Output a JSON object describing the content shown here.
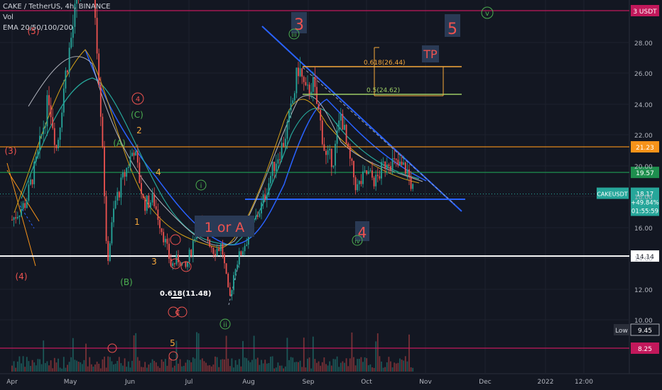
{
  "legend": {
    "symbol": "CAKE / TetherUS, 4h, BINANCE",
    "vol": "Vol",
    "ema": "EMA 20/50/100/200"
  },
  "chart_data": {
    "type": "candlestick",
    "title": "CAKE / TetherUS, 4h, BINANCE",
    "price_axis": {
      "unit": "USDT",
      "ticks": [
        "28.00",
        "26.00",
        "24.00",
        "22.00",
        "20.00",
        "18.00",
        "16.00",
        "14.00",
        "12.00",
        "10.00"
      ],
      "ylim": [
        7.5,
        31
      ]
    },
    "time_axis": {
      "ticks": [
        "Apr",
        "May",
        "Jun",
        "Jul",
        "Aug",
        "Sep",
        "Oct",
        "Nov",
        "Dec",
        "2022",
        "12:00"
      ]
    },
    "price_badges": [
      {
        "label": "3",
        "unit": "USDT",
        "value": 30.0,
        "color": "#c2185b"
      },
      {
        "label": "21.23",
        "value": 21.23,
        "color": "#f7931a"
      },
      {
        "label": "19.57",
        "value": 19.57,
        "color": "#1e8f4e"
      },
      {
        "label": "14.14",
        "value": 14.14,
        "color": "#ffffff"
      },
      {
        "label": "8.25",
        "value": 8.25,
        "color": "#c2185b"
      }
    ],
    "current": {
      "symbol": "CAKEUSDT",
      "price": "18.17",
      "change": "+49.84%",
      "countdown": "01:55:59"
    },
    "low": {
      "label": "Low",
      "value": "9.45"
    },
    "fib_levels": [
      {
        "label": "0.618(26.44)",
        "value": 26.44
      },
      {
        "label": "0.5(24.62)",
        "value": 24.62
      },
      {
        "label": "0.618(11.48)",
        "value": 11.48
      }
    ],
    "wave_labels": [
      "3",
      "5",
      "TP",
      "1 or A",
      "4",
      "(3)",
      "(4)",
      "(5)",
      "(C)",
      "(A)",
      "(B)",
      "2",
      "4",
      "1",
      "3",
      "5",
      "i",
      "ii",
      "iii",
      "iv",
      "v",
      "4",
      "C"
    ],
    "price_path": [
      [
        "Apr 1",
        16.5
      ],
      [
        "Apr 8",
        17.6
      ],
      [
        "Apr 14",
        20.5
      ],
      [
        "Apr 20",
        24.5
      ],
      [
        "Apr 24",
        21.0
      ],
      [
        "Apr 28",
        25.5
      ],
      [
        "May 3",
        29.5
      ],
      [
        "May 8",
        34.0
      ],
      [
        "May 14",
        30.0
      ],
      [
        "May 18",
        21.0
      ],
      [
        "May 20",
        13.5
      ],
      [
        "May 24",
        17.5
      ],
      [
        "May 28",
        19.0
      ],
      [
        "Jun 3",
        21.2
      ],
      [
        "Jun 8",
        17.5
      ],
      [
        "Jun 13",
        17.8
      ],
      [
        "Jun 18",
        15.5
      ],
      [
        "Jun 22",
        13.5
      ],
      [
        "Jun 26",
        14.0
      ],
      [
        "Jun 29",
        13.2
      ],
      [
        "Jul 2",
        14.5
      ],
      [
        "Jul 6",
        16.5
      ],
      [
        "Jul 10",
        15.5
      ],
      [
        "Jul 14",
        14.5
      ],
      [
        "Jul 18",
        14.8
      ],
      [
        "Jul 22",
        11.2
      ],
      [
        "Jul 25",
        13.5
      ],
      [
        "Aug 1",
        15.5
      ],
      [
        "Aug 8",
        17.5
      ],
      [
        "Aug 14",
        20.0
      ],
      [
        "Aug 19",
        21.5
      ],
      [
        "Aug 23",
        23.5
      ],
      [
        "Aug 27",
        26.5
      ],
      [
        "Aug 31",
        24.5
      ],
      [
        "Sep 3",
        25.5
      ],
      [
        "Sep 7",
        23.0
      ],
      [
        "Sep 10",
        20.5
      ],
      [
        "Sep 14",
        20.5
      ],
      [
        "Sep 18",
        23.5
      ],
      [
        "Sep 21",
        21.0
      ],
      [
        "Sep 26",
        18.5
      ],
      [
        "Oct 1",
        19.5
      ],
      [
        "Oct 6",
        19.0
      ],
      [
        "Oct 12",
        20.5
      ],
      [
        "Oct 17",
        20.0
      ],
      [
        "Oct 22",
        19.8
      ],
      [
        "Oct 26",
        18.2
      ]
    ]
  }
}
